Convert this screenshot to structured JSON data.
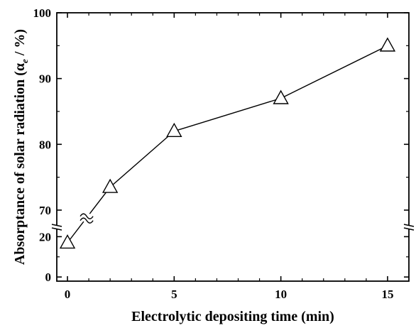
{
  "chart_data": {
    "type": "line",
    "xlabel": "Electrolytic depositing time (min)",
    "ylabel_main": "Absorptance of solar radiation (α",
    "ylabel_sub": "e",
    "ylabel_tail": " / %)",
    "xlim": [
      -0.5,
      16
    ],
    "ylim_upper": [
      66,
      100
    ],
    "ylim_lower": [
      -1,
      24
    ],
    "y_break_between": [
      24,
      66
    ],
    "x_break_between": [
      0,
      2
    ],
    "grid": false,
    "marker": "open-triangle",
    "x_ticks": [
      0,
      5,
      10,
      15
    ],
    "x_tick_labels": [
      "0",
      "5",
      "10",
      "15"
    ],
    "y_ticks_upper": [
      70,
      80,
      90,
      100
    ],
    "y_tick_labels_upper": [
      "70",
      "80",
      "90",
      "100"
    ],
    "y_ticks_lower": [
      0,
      20
    ],
    "y_tick_labels_lower": [
      "0",
      "20"
    ],
    "series": [
      {
        "x": [
          0,
          2,
          5,
          10,
          15
        ],
        "y": [
          17,
          73.5,
          82,
          87,
          95
        ]
      }
    ]
  }
}
